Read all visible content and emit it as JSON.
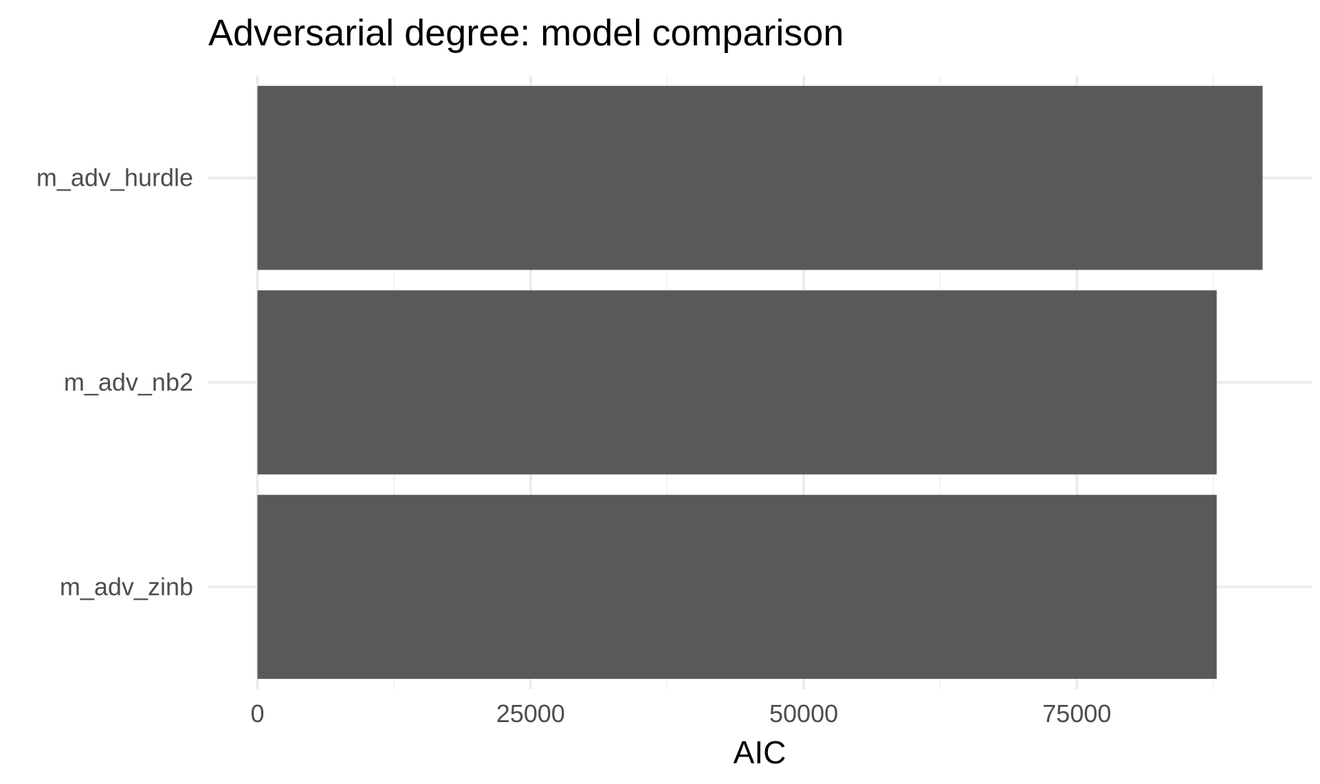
{
  "chart_data": {
    "type": "bar",
    "orientation": "horizontal",
    "title": "Adversarial degree: model comparison",
    "xlabel": "AIC",
    "ylabel": "",
    "categories": [
      "m_adv_hurdle",
      "m_adv_nb2",
      "m_adv_zinb"
    ],
    "values": [
      92000,
      87800,
      87800
    ],
    "xlim": [
      -4500,
      96500
    ],
    "x_ticks": [
      0,
      25000,
      50000,
      75000
    ],
    "x_tick_labels": [
      "0",
      "25000",
      "50000",
      "75000"
    ],
    "grid": true,
    "legend": "none",
    "colors": {
      "bar": "#595959",
      "grid_major": "#ebebeb",
      "grid_minor": "#f2f2f2",
      "tick_text": "#4d4d4d",
      "title_text": "#000000"
    }
  }
}
